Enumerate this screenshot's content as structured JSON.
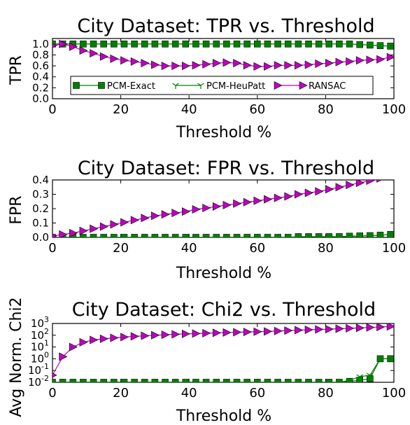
{
  "chart_data": [
    {
      "type": "line",
      "title": "City Dataset: TPR vs. Threshold",
      "xlabel": "Threshold %",
      "ylabel": "TPR",
      "xlim": [
        0,
        100
      ],
      "ylim": [
        0,
        1.1
      ],
      "xticks": [
        "0",
        "20",
        "40",
        "60",
        "80",
        "100"
      ],
      "yticks": [
        "0.0",
        "0.2",
        "0.4",
        "0.6",
        "0.8",
        "1.0"
      ],
      "legend": "lower-center",
      "x": [
        0,
        3,
        6,
        9,
        12,
        15,
        18,
        21,
        24,
        27,
        30,
        33,
        36,
        39,
        42,
        45,
        48,
        51,
        54,
        57,
        60,
        63,
        66,
        69,
        72,
        75,
        78,
        81,
        84,
        87,
        90,
        93,
        96,
        99
      ],
      "series": [
        {
          "name": "PCM-Exact",
          "color": "#008000",
          "marker": "square",
          "values": [
            1.0,
            1.0,
            1.0,
            1.0,
            1.0,
            1.0,
            1.0,
            1.0,
            1.0,
            1.0,
            1.0,
            1.0,
            1.0,
            1.0,
            1.0,
            1.0,
            1.0,
            1.0,
            1.0,
            1.0,
            1.0,
            1.0,
            1.0,
            1.0,
            1.0,
            1.0,
            1.0,
            1.0,
            1.0,
            1.0,
            0.99,
            0.98,
            0.97,
            0.96
          ]
        },
        {
          "name": "PCM-HeuPatt",
          "color": "#008000",
          "marker": "tri-down",
          "values": [
            1.0,
            1.0,
            1.0,
            1.0,
            1.0,
            1.0,
            1.0,
            1.0,
            1.0,
            1.0,
            1.0,
            1.0,
            1.0,
            1.0,
            1.0,
            1.0,
            1.0,
            1.0,
            1.0,
            1.0,
            1.0,
            1.0,
            1.0,
            1.0,
            1.0,
            1.0,
            1.0,
            1.0,
            1.0,
            1.0,
            0.99,
            0.98,
            0.97,
            0.96
          ]
        },
        {
          "name": "RANSAC",
          "color": "#bf00bf",
          "marker": "triangle-right",
          "values": [
            0.97,
            1.0,
            0.95,
            0.88,
            0.83,
            0.77,
            0.73,
            0.7,
            0.68,
            0.65,
            0.62,
            0.6,
            0.6,
            0.6,
            0.61,
            0.63,
            0.65,
            0.66,
            0.65,
            0.61,
            0.59,
            0.59,
            0.61,
            0.61,
            0.61,
            0.62,
            0.64,
            0.65,
            0.67,
            0.68,
            0.7,
            0.71,
            0.72,
            0.76
          ]
        }
      ]
    },
    {
      "type": "line",
      "title": "City Dataset: FPR vs. Threshold",
      "xlabel": "Threshold %",
      "ylabel": "FPR",
      "xlim": [
        0,
        100
      ],
      "ylim": [
        0,
        0.4
      ],
      "xticks": [
        "0",
        "20",
        "40",
        "60",
        "80",
        "100"
      ],
      "yticks": [
        "0.0",
        "0.1",
        "0.2",
        "0.3",
        "0.4"
      ],
      "x": [
        0,
        3,
        6,
        9,
        12,
        15,
        18,
        21,
        24,
        27,
        30,
        33,
        36,
        39,
        42,
        45,
        48,
        51,
        54,
        57,
        60,
        63,
        66,
        69,
        72,
        75,
        78,
        81,
        84,
        87,
        90,
        93,
        96,
        99
      ],
      "series": [
        {
          "name": "PCM-Exact",
          "color": "#008000",
          "marker": "square",
          "values": [
            0.0,
            0.0,
            0.0,
            0.0,
            0.0,
            0.0,
            0.0,
            0.0,
            0.0,
            0.0,
            0.0,
            0.0,
            0.0,
            0.0,
            0.0,
            0.0,
            0.0,
            0.0,
            0.0,
            0.0,
            0.0,
            0.0,
            0.0,
            0.0,
            0.005,
            0.005,
            0.005,
            0.005,
            0.005,
            0.008,
            0.01,
            0.012,
            0.015,
            0.02
          ]
        },
        {
          "name": "PCM-HeuPatt",
          "color": "#008000",
          "marker": "tri-down",
          "values": [
            0.0,
            0.0,
            0.0,
            0.0,
            0.0,
            0.0,
            0.0,
            0.0,
            0.0,
            0.0,
            0.0,
            0.0,
            0.0,
            0.0,
            0.0,
            0.0,
            0.0,
            0.0,
            0.0,
            0.0,
            0.0,
            0.0,
            0.0,
            0.0,
            0.005,
            0.005,
            0.005,
            0.005,
            0.005,
            0.008,
            0.01,
            0.012,
            0.015,
            0.02
          ]
        },
        {
          "name": "RANSAC",
          "color": "#bf00bf",
          "marker": "triangle-right",
          "values": [
            0.01,
            0.02,
            0.03,
            0.045,
            0.06,
            0.075,
            0.09,
            0.105,
            0.12,
            0.135,
            0.15,
            0.16,
            0.17,
            0.18,
            0.195,
            0.205,
            0.215,
            0.225,
            0.235,
            0.245,
            0.255,
            0.265,
            0.275,
            0.285,
            0.3,
            0.31,
            0.32,
            0.335,
            0.35,
            0.365,
            0.38,
            0.395,
            0.41,
            0.43
          ]
        }
      ]
    },
    {
      "type": "line",
      "title": "City Dataset: Chi2 vs. Threshold",
      "xlabel": "Threshold %",
      "ylabel": "Avg Norm. Chi2",
      "xlim": [
        0,
        100
      ],
      "yscale": "log",
      "ylim": [
        0.01,
        1000
      ],
      "xticks": [
        "0",
        "20",
        "40",
        "60",
        "80",
        "100"
      ],
      "yticks": [
        {
          "base": "10",
          "exp": "-2"
        },
        {
          "base": "10",
          "exp": "-1"
        },
        {
          "base": "10",
          "exp": "0"
        },
        {
          "base": "10",
          "exp": "1"
        },
        {
          "base": "10",
          "exp": "2"
        },
        {
          "base": "10",
          "exp": "3"
        }
      ],
      "x": [
        0,
        3,
        6,
        9,
        12,
        15,
        18,
        21,
        24,
        27,
        30,
        33,
        36,
        39,
        42,
        45,
        48,
        51,
        54,
        57,
        60,
        63,
        66,
        69,
        72,
        75,
        78,
        81,
        84,
        87,
        90,
        93,
        96,
        99
      ],
      "series": [
        {
          "name": "PCM-Exact",
          "color": "#008000",
          "marker": "square",
          "values": [
            0.01,
            0.01,
            0.01,
            0.01,
            0.01,
            0.01,
            0.01,
            0.01,
            0.01,
            0.01,
            0.01,
            0.01,
            0.01,
            0.01,
            0.01,
            0.01,
            0.01,
            0.01,
            0.01,
            0.01,
            0.01,
            0.01,
            0.01,
            0.01,
            0.01,
            0.01,
            0.01,
            0.01,
            0.01,
            0.012,
            0.015,
            0.02,
            1.0,
            1.0
          ]
        },
        {
          "name": "PCM-HeuPatt",
          "color": "#008000",
          "marker": "tri-down",
          "values": [
            0.01,
            0.01,
            0.01,
            0.01,
            0.01,
            0.01,
            0.01,
            0.01,
            0.01,
            0.01,
            0.01,
            0.01,
            0.01,
            0.01,
            0.01,
            0.01,
            0.01,
            0.01,
            0.01,
            0.01,
            0.01,
            0.01,
            0.01,
            0.01,
            0.01,
            0.01,
            0.01,
            0.01,
            0.01,
            0.015,
            0.03,
            0.04,
            1.0,
            1.0
          ]
        },
        {
          "name": "RANSAC",
          "color": "#bf00bf",
          "marker": "triangle-right",
          "values": [
            0.04,
            1.5,
            10,
            25,
            40,
            50,
            60,
            70,
            80,
            90,
            100,
            110,
            120,
            130,
            140,
            150,
            160,
            170,
            180,
            190,
            200,
            210,
            230,
            250,
            270,
            290,
            310,
            330,
            360,
            390,
            420,
            460,
            500,
            560
          ]
        }
      ]
    }
  ]
}
